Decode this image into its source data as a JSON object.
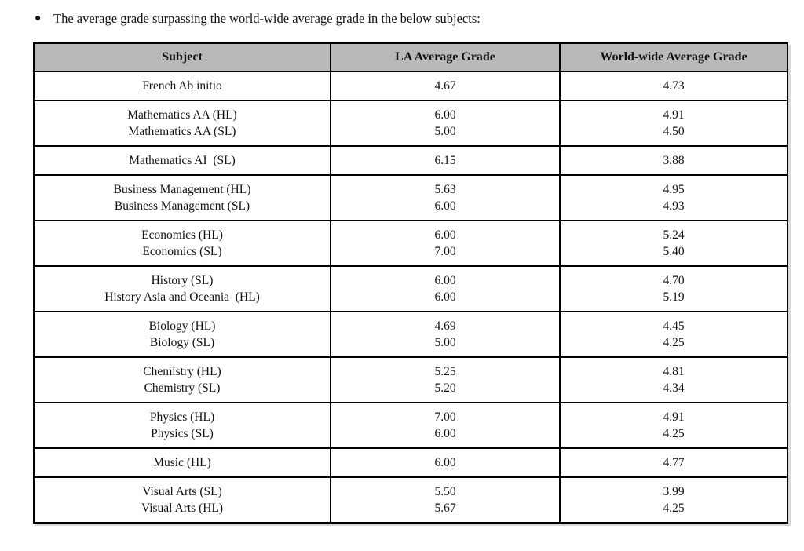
{
  "document": {
    "bullet_marker": "●",
    "bullet_text": "The average grade surpassing the world-wide average grade in the below subjects:"
  },
  "table": {
    "headers": [
      "Subject",
      "LA Average Grade",
      "World-wide Average Grade"
    ],
    "rows": [
      {
        "subject": [
          "French Ab initio"
        ],
        "la": [
          "4.67"
        ],
        "worldwide": [
          "4.73"
        ]
      },
      {
        "subject": [
          "Mathematics AA (HL)",
          "Mathematics AA (SL)"
        ],
        "la": [
          "6.00",
          "5.00"
        ],
        "worldwide": [
          "4.91",
          "4.50"
        ]
      },
      {
        "subject": [
          "Mathematics AI  (SL)"
        ],
        "la": [
          "6.15"
        ],
        "worldwide": [
          "3.88"
        ]
      },
      {
        "subject": [
          "Business Management (HL)",
          "Business Management (SL)"
        ],
        "la": [
          "5.63",
          "6.00"
        ],
        "worldwide": [
          "4.95",
          "4.93"
        ]
      },
      {
        "subject": [
          "Economics (HL)",
          "Economics (SL)"
        ],
        "la": [
          "6.00",
          "7.00"
        ],
        "worldwide": [
          "5.24",
          "5.40"
        ]
      },
      {
        "subject": [
          "History (SL)",
          "History Asia and Oceania  (HL)"
        ],
        "la": [
          "6.00",
          "6.00"
        ],
        "worldwide": [
          "4.70",
          "5.19"
        ]
      },
      {
        "subject": [
          "Biology (HL)",
          "Biology (SL)"
        ],
        "la": [
          "4.69",
          "5.00"
        ],
        "worldwide": [
          "4.45",
          "4.25"
        ]
      },
      {
        "subject": [
          "Chemistry (HL)",
          "Chemistry (SL)"
        ],
        "la": [
          "5.25",
          "5.20"
        ],
        "worldwide": [
          "4.81",
          "4.34"
        ]
      },
      {
        "subject": [
          "Physics (HL)",
          "Physics (SL)"
        ],
        "la": [
          "7.00",
          "6.00"
        ],
        "worldwide": [
          "4.91",
          "4.25"
        ]
      },
      {
        "subject": [
          "Music (HL)"
        ],
        "la": [
          "6.00"
        ],
        "worldwide": [
          "4.77"
        ]
      },
      {
        "subject": [
          "Visual Arts (SL)",
          "Visual Arts (HL)"
        ],
        "la": [
          "5.50",
          "5.67"
        ],
        "worldwide": [
          "3.99",
          "4.25"
        ]
      }
    ],
    "styles": {
      "header_bg": "#b9b9b9",
      "border_color": "#000000",
      "text_color": "#111111"
    }
  }
}
